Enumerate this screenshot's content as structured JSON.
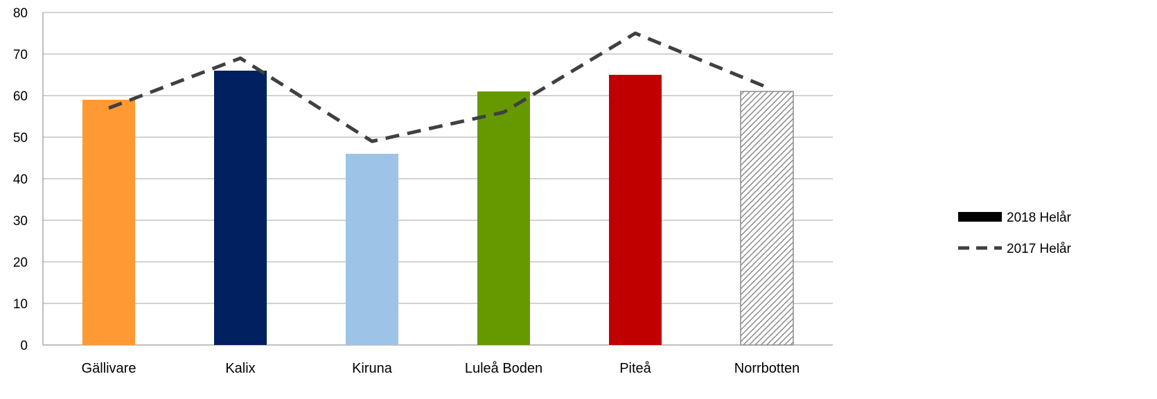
{
  "chart_data": {
    "type": "bar",
    "categories": [
      "Gällivare",
      "Kalix",
      "Kiruna",
      "Luleå Boden",
      "Piteå",
      "Norrbotten"
    ],
    "series": [
      {
        "name": "2018 Helår",
        "type": "bar",
        "values": [
          59,
          66,
          46,
          61,
          65,
          61
        ],
        "colors": [
          "#FF9933",
          "#002060",
          "#9DC3E6",
          "#669900",
          "#C00000",
          "hatched-gray"
        ]
      },
      {
        "name": "2017 Helår",
        "type": "line",
        "style": "dashed",
        "color": "#404040",
        "values": [
          57,
          69,
          49,
          56,
          75,
          62
        ]
      }
    ],
    "ylim": [
      0,
      80
    ],
    "yticks": [
      0,
      10,
      20,
      30,
      40,
      50,
      60,
      70,
      80
    ],
    "title": "",
    "xlabel": "",
    "ylabel": "",
    "grid": true,
    "legend_position": "right"
  }
}
